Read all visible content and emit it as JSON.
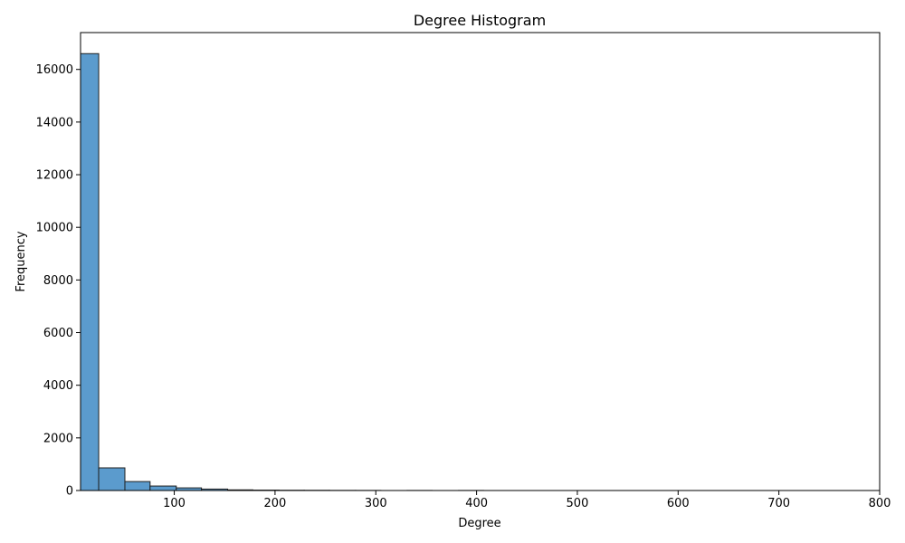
{
  "chart_data": {
    "type": "bar",
    "title": "Degree Histogram",
    "xlabel": "Degree",
    "ylabel": "Frequency",
    "xlim": [
      7,
      800
    ],
    "ylim": [
      0,
      17400
    ],
    "x_ticks": [
      100,
      200,
      300,
      400,
      500,
      600,
      700,
      800
    ],
    "y_ticks": [
      0,
      2000,
      4000,
      6000,
      8000,
      10000,
      12000,
      14000,
      16000
    ],
    "grid": false,
    "legend": "none",
    "bar_color": "#5b9bcd",
    "edge_color": "#1f1f1f",
    "bins": [
      {
        "x0": 7,
        "x1": 25,
        "value": 16600
      },
      {
        "x0": 25,
        "x1": 51,
        "value": 860
      },
      {
        "x0": 51,
        "x1": 76,
        "value": 340
      },
      {
        "x0": 76,
        "x1": 102,
        "value": 170
      },
      {
        "x0": 102,
        "x1": 127,
        "value": 100
      },
      {
        "x0": 127,
        "x1": 153,
        "value": 55
      },
      {
        "x0": 153,
        "x1": 178,
        "value": 25
      },
      {
        "x0": 178,
        "x1": 204,
        "value": 15
      },
      {
        "x0": 204,
        "x1": 229,
        "value": 10
      },
      {
        "x0": 229,
        "x1": 254,
        "value": 8
      },
      {
        "x0": 254,
        "x1": 280,
        "value": 5
      },
      {
        "x0": 280,
        "x1": 305,
        "value": 4
      },
      {
        "x0": 331,
        "x1": 356,
        "value": 3
      },
      {
        "x0": 382,
        "x1": 407,
        "value": 3
      }
    ]
  }
}
